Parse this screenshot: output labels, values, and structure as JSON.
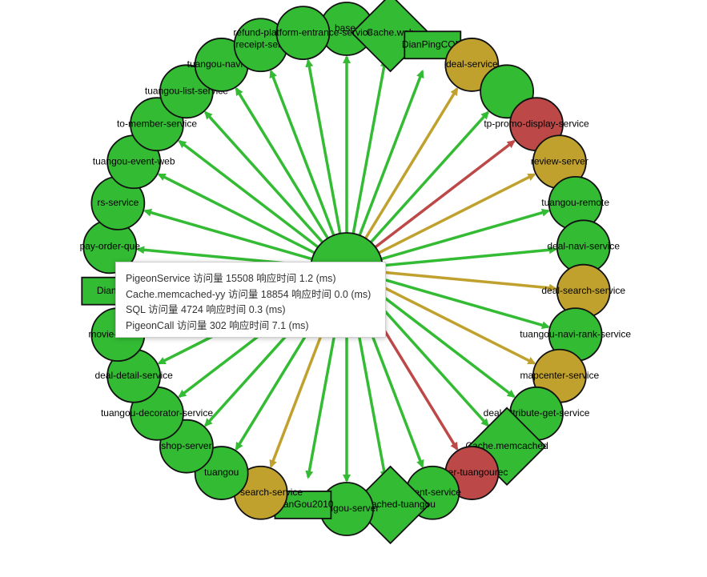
{
  "colors": {
    "ok": "#33bb33",
    "warn": "#c1a12e",
    "error": "#bd4848",
    "stroke": "#111111"
  },
  "graph": {
    "center": {
      "status": "ok"
    },
    "nodes": [
      {
        "label": "base-",
        "shape": "circle",
        "status": "ok"
      },
      {
        "label": "Cache.web",
        "shape": "diamond",
        "status": "ok"
      },
      {
        "label": "DianPingCOM",
        "shape": "rect",
        "status": "ok"
      },
      {
        "label": "deal-service",
        "shape": "circle",
        "status": "warn"
      },
      {
        "label": "",
        "shape": "circle",
        "status": "ok"
      },
      {
        "label": "tp-promo-display-service",
        "shape": "circle",
        "status": "error"
      },
      {
        "label": "review-server",
        "shape": "circle",
        "status": "warn"
      },
      {
        "label": "tuangou-remote",
        "shape": "circle",
        "status": "ok"
      },
      {
        "label": "deal-navi-service",
        "shape": "circle",
        "status": "ok"
      },
      {
        "label": "deal-search-service",
        "shape": "circle",
        "status": "warn"
      },
      {
        "label": "tuangou-navi-rank-service",
        "shape": "circle",
        "status": "ok"
      },
      {
        "label": "mapcenter-service",
        "shape": "circle",
        "status": "warn"
      },
      {
        "label": "deal-attribute-get-service",
        "shape": "circle",
        "status": "ok"
      },
      {
        "label": "Cache.memcached",
        "shape": "diamond",
        "status": "ok"
      },
      {
        "label": "bizer-tuangourec",
        "shape": "circle",
        "status": "error"
      },
      {
        "label": "event-service",
        "shape": "circle",
        "status": "ok"
      },
      {
        "label": "memcached-tuangou",
        "shape": "diamond",
        "status": "ok"
      },
      {
        "label": "tuangou-server",
        "shape": "circle",
        "status": "ok"
      },
      {
        "label": "TuanGou2010",
        "shape": "rect",
        "status": "ok"
      },
      {
        "label": "deal-search-service",
        "shape": "circle",
        "status": "warn"
      },
      {
        "label": "tuangou",
        "shape": "circle",
        "status": "ok"
      },
      {
        "label": "shop-server",
        "shape": "circle",
        "status": "ok"
      },
      {
        "label": "tuangou-decorator-service",
        "shape": "circle",
        "status": "ok"
      },
      {
        "label": "deal-detail-service",
        "shape": "circle",
        "status": "ok"
      },
      {
        "label": "movie-service",
        "shape": "circle",
        "status": "ok"
      },
      {
        "label": "DianP",
        "shape": "rect",
        "status": "ok"
      },
      {
        "label": "pay-order-que",
        "shape": "circle",
        "status": "ok"
      },
      {
        "label": "rs-service",
        "shape": "circle",
        "status": "ok"
      },
      {
        "label": "tuangou-event-web",
        "shape": "circle",
        "status": "ok"
      },
      {
        "label": "to-member-service",
        "shape": "circle",
        "status": "ok"
      },
      {
        "label": "tuangou-list-service",
        "shape": "circle",
        "status": "ok"
      },
      {
        "label": "tuangou-navi-se",
        "shape": "circle",
        "status": "ok"
      },
      {
        "label": "receipt-serv",
        "shape": "circle",
        "status": "ok"
      },
      {
        "label": "refund-platform-entrance-service",
        "shape": "circle",
        "status": "ok"
      }
    ]
  },
  "tooltip": {
    "lines": [
      "PigeonService 访问量 15508 响应时间 1.2 (ms)",
      "Cache.memcached-yy 访问量 18854 响应时间 0.0 (ms)",
      "SQL 访问量 4724 响应时间 0.3 (ms)",
      "PigeonCall 访问量 302 响应时间 7.1 (ms)"
    ]
  }
}
